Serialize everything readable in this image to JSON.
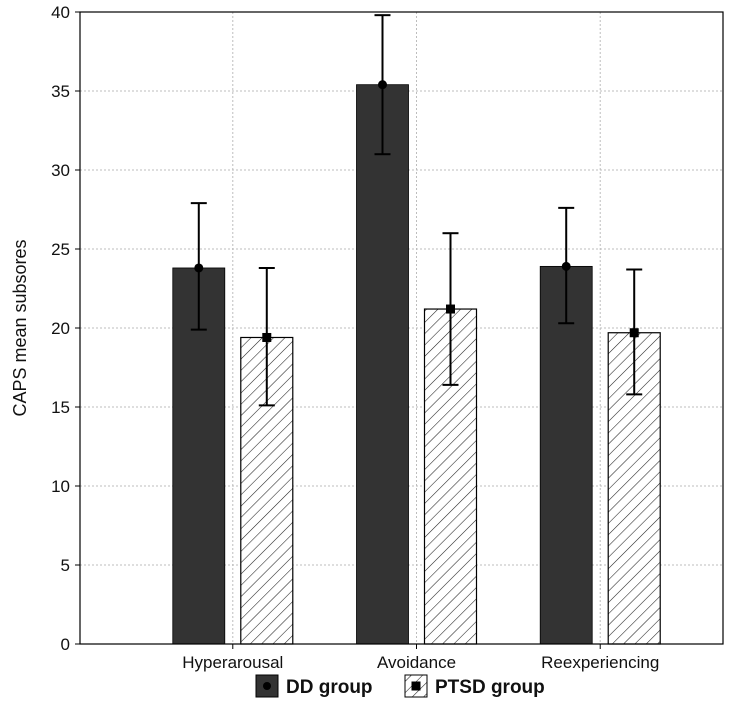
{
  "chart_data": {
    "type": "bar",
    "ylabel": "CAPS mean subsores",
    "xlabel": "",
    "ylim": [
      0,
      40
    ],
    "yticks": [
      0,
      5,
      10,
      15,
      20,
      25,
      30,
      35,
      40
    ],
    "grid": true,
    "categories": [
      "Hyperarousal",
      "Avoidance",
      "Reexperiencing"
    ],
    "series": [
      {
        "name": "DD group",
        "values": [
          23.8,
          35.4,
          23.9
        ],
        "error_low": [
          19.9,
          31.0,
          20.3
        ],
        "error_high": [
          27.9,
          39.8,
          27.6
        ],
        "fill": "#333333",
        "marker": "circle"
      },
      {
        "name": "PTSD group",
        "values": [
          19.4,
          21.2,
          19.7
        ],
        "error_low": [
          15.1,
          16.4,
          15.8
        ],
        "error_high": [
          23.8,
          26.0,
          23.7
        ],
        "fill": "hatched",
        "marker": "square"
      }
    ],
    "legend_position": "bottom"
  }
}
